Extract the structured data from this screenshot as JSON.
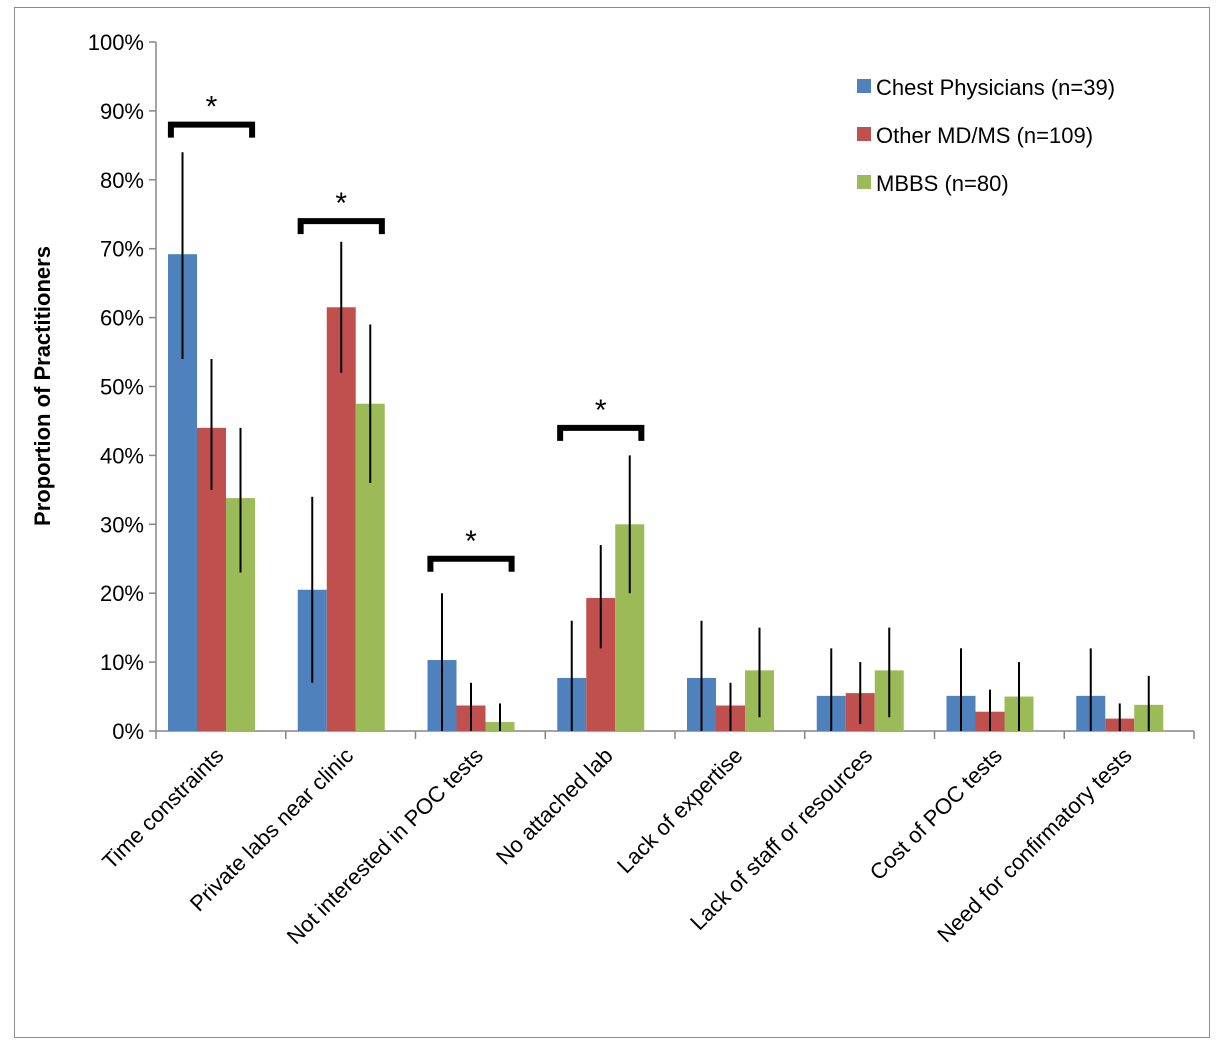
{
  "chart_data": {
    "type": "bar",
    "title": "",
    "xlabel": "",
    "ylabel": "Proportion of Practitioners",
    "ylim": [
      0,
      100
    ],
    "y_unit": "%",
    "y_ticks": [
      "0%",
      "10%",
      "20%",
      "30%",
      "40%",
      "50%",
      "60%",
      "70%",
      "80%",
      "90%",
      "100%"
    ],
    "grid": false,
    "legend_position": "top-right",
    "categories": [
      "Time constraints",
      "Private labs near clinic",
      "Not interested in POC tests",
      "No attached lab",
      "Lack of expertise",
      "Lack of staff or resources",
      "Cost of POC tests",
      "Need for confirmatory tests"
    ],
    "series": [
      {
        "name": "Chest Physicians (n=39)",
        "color": "#4f81bd",
        "values": [
          69.2,
          20.5,
          10.3,
          7.7,
          7.7,
          5.1,
          5.1,
          5.1
        ],
        "error_low": [
          54,
          7,
          0,
          0,
          0,
          0,
          0,
          0
        ],
        "error_high": [
          84,
          34,
          20,
          16,
          16,
          12,
          12,
          12
        ]
      },
      {
        "name": "Other MD/MS (n=109)",
        "color": "#c0504d",
        "values": [
          44.0,
          61.5,
          3.7,
          19.3,
          3.7,
          5.5,
          2.8,
          1.8
        ],
        "error_low": [
          35,
          52,
          0,
          12,
          0,
          1,
          0,
          0
        ],
        "error_high": [
          54,
          71,
          7,
          27,
          7,
          10,
          6,
          4
        ]
      },
      {
        "name": "MBBS (n=80)",
        "color": "#9bbb59",
        "values": [
          33.8,
          47.5,
          1.3,
          30.0,
          8.8,
          8.8,
          5.0,
          3.8
        ],
        "error_low": [
          23,
          36,
          0,
          20,
          2,
          2,
          0,
          0
        ],
        "error_high": [
          44,
          59,
          4,
          40,
          15,
          15,
          10,
          8
        ]
      }
    ],
    "annotations": [
      {
        "text": "*",
        "category": "Time constraints",
        "bracket_y": 88
      },
      {
        "text": "*",
        "category": "Private labs near clinic",
        "bracket_y": 74
      },
      {
        "text": "*",
        "category": "Not interested in POC tests",
        "bracket_y": 25
      },
      {
        "text": "*",
        "category": "No attached lab",
        "bracket_y": 44
      }
    ]
  }
}
